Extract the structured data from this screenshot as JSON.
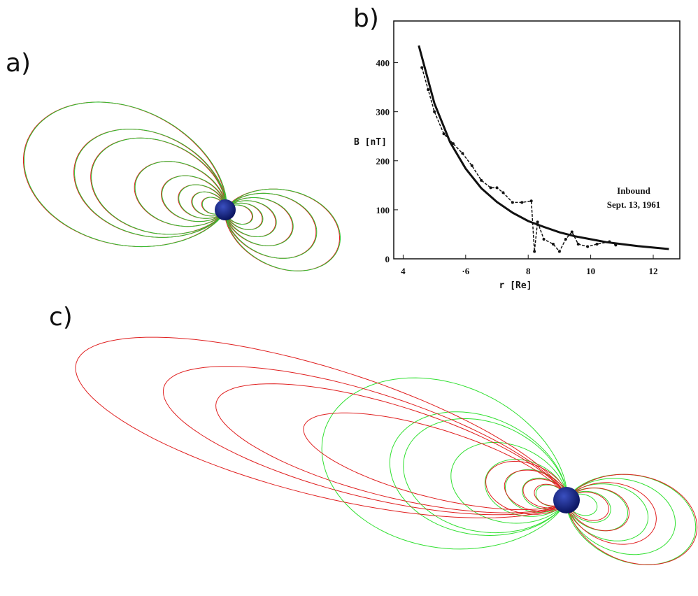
{
  "panels": {
    "a": "a)",
    "b": "b)",
    "c": "c)"
  },
  "chart_data": {
    "type": "line",
    "x_label": "r [Re]",
    "y_label": "B [nT]",
    "annotations": [
      "Inbound",
      "Sept. 13, 1961"
    ],
    "xlim": [
      3.7,
      12.85
    ],
    "ylim": [
      0,
      485
    ],
    "xticks": [
      4,
      {
        "value": 6,
        "label": "·6"
      },
      8,
      10,
      12
    ],
    "yticks": [
      0,
      100,
      200,
      300,
      400
    ],
    "series": [
      {
        "color": "#111111",
        "style": "solid",
        "x": [
          4.5,
          5,
          5.5,
          6,
          6.5,
          7,
          7.5,
          8,
          8.5,
          9,
          9.5,
          10,
          10.5,
          11,
          11.5,
          12,
          12.5
        ],
        "values": [
          435,
          317,
          238,
          184,
          144,
          116,
          94,
          77,
          65,
          54,
          46,
          40,
          34,
          30,
          26,
          23,
          20
        ]
      },
      {
        "color": "#111111",
        "style": "dashed",
        "x": [
          4.6,
          4.8,
          5.0,
          5.3,
          5.6,
          5.9,
          6.2,
          6.5,
          6.8,
          7.0,
          7.2,
          7.5,
          7.8,
          8.1,
          8.2,
          8.3,
          8.5,
          8.8,
          9.0,
          9.2,
          9.4,
          9.6,
          9.9,
          10.2,
          10.6,
          10.8
        ],
        "values": [
          390,
          345,
          300,
          255,
          235,
          215,
          190,
          160,
          145,
          145,
          135,
          115,
          115,
          118,
          15,
          75,
          40,
          30,
          15,
          40,
          55,
          30,
          25,
          30,
          35,
          28
        ]
      }
    ]
  }
}
